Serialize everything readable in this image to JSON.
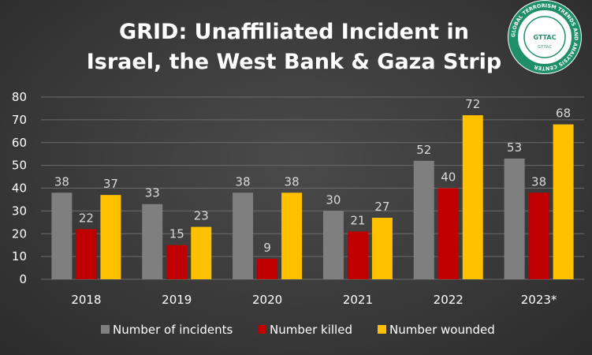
{
  "logo": {
    "ring_text": "GLOBAL TERRORISM TRENDS AND ANALYSIS CENTER",
    "center_text": "GTTAC",
    "inner_text": "GTTAC",
    "color": "#1f8f6a"
  },
  "chart_data": {
    "type": "bar",
    "title": "GRID: Unaffiliated Incident in Israel, the West Bank & Gaza Strip",
    "title_lines": [
      "GRID: Unaffiliated Incident in",
      "Israel, the West Bank & Gaza Strip"
    ],
    "categories": [
      "2018",
      "2019",
      "2020",
      "2021",
      "2022",
      "2023*"
    ],
    "series": [
      {
        "name": "Number of incidents",
        "color": "#7f7f7f",
        "values": [
          38,
          33,
          38,
          30,
          52,
          53
        ]
      },
      {
        "name": "Number killed",
        "color": "#c00000",
        "values": [
          22,
          15,
          9,
          21,
          40,
          38
        ]
      },
      {
        "name": "Number wounded",
        "color": "#ffc000",
        "values": [
          37,
          23,
          38,
          27,
          72,
          68
        ]
      }
    ],
    "ylim": [
      0,
      80
    ],
    "yticks": [
      0,
      10,
      20,
      30,
      40,
      50,
      60,
      70,
      80
    ],
    "grid": true,
    "legend_position": "bottom",
    "data_labels": true
  }
}
